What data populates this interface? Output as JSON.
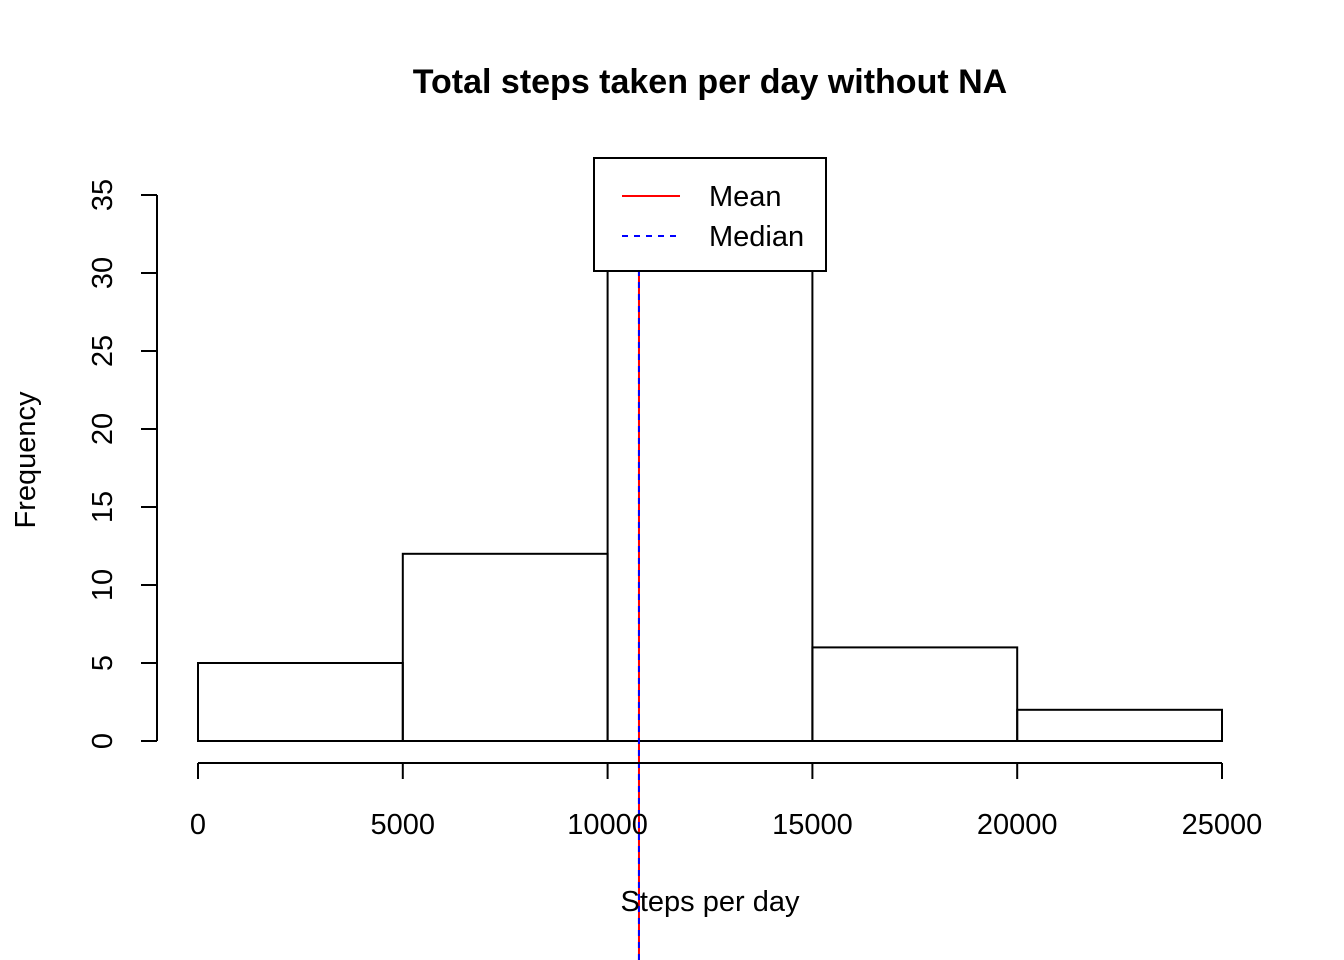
{
  "chart_data": {
    "type": "bar",
    "title": "Total steps taken per day without NA",
    "xlabel": "Steps per day",
    "ylabel": "Frequency",
    "bins": [
      {
        "start": 0,
        "end": 5000,
        "count": 5
      },
      {
        "start": 5000,
        "end": 10000,
        "count": 12
      },
      {
        "start": 10000,
        "end": 15000,
        "count": 36
      },
      {
        "start": 15000,
        "end": 20000,
        "count": 6
      },
      {
        "start": 20000,
        "end": 25000,
        "count": 2
      }
    ],
    "xlim": [
      0,
      25000
    ],
    "ylim": [
      0,
      35
    ],
    "x_ticks": [
      0,
      5000,
      10000,
      15000,
      20000,
      25000
    ],
    "y_ticks": [
      0,
      5,
      10,
      15,
      20,
      25,
      30,
      35
    ],
    "mean": 10766,
    "median": 10765,
    "grid": false,
    "legend": {
      "placement": "top-center",
      "entries": [
        {
          "label": "Mean",
          "color": "#ff0000",
          "style": "solid"
        },
        {
          "label": "Median",
          "color": "#0000ff",
          "style": "dashed"
        }
      ]
    }
  }
}
